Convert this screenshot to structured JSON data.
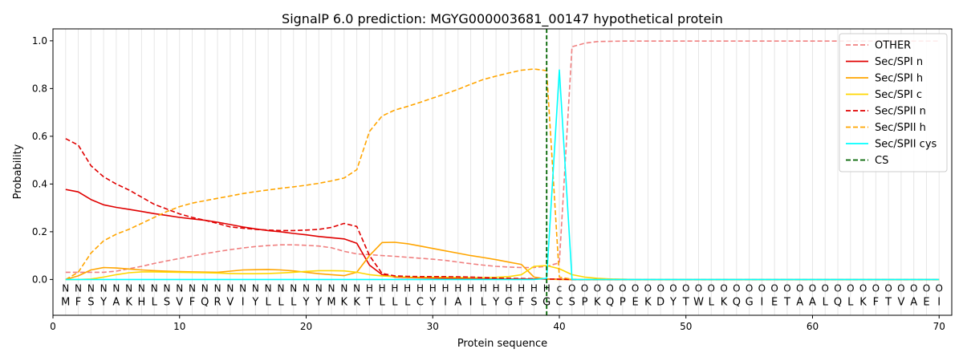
{
  "chart_data": {
    "type": "line",
    "title": "SignalP 6.0 prediction: MGYG000003681_00147 hypothetical protein",
    "xlabel": "Protein sequence",
    "ylabel": "Probability",
    "xlim": [
      0,
      71
    ],
    "ylim": [
      -0.15,
      1.05
    ],
    "xticks": [
      0,
      10,
      20,
      30,
      40,
      50,
      60,
      70
    ],
    "yticks": [
      0.0,
      0.2,
      0.4,
      0.6,
      0.8,
      1.0
    ],
    "grid": "vertical lines at each residue position",
    "legend_position": "top-right",
    "sequence": [
      "M",
      "F",
      "S",
      "Y",
      "A",
      "K",
      "H",
      "L",
      "S",
      "V",
      "F",
      "Q",
      "R",
      "V",
      "I",
      "Y",
      "L",
      "L",
      "L",
      "Y",
      "Y",
      "M",
      "K",
      "K",
      "T",
      "L",
      "L",
      "L",
      "C",
      "Y",
      "I",
      "A",
      "I",
      "L",
      "Y",
      "G",
      "F",
      "S",
      "G",
      "C",
      "S",
      "P",
      "K",
      "Q",
      "P",
      "E",
      "K",
      "D",
      "Y",
      "T",
      "W",
      "L",
      "K",
      "Q",
      "G",
      "I",
      "E",
      "T",
      "A",
      "A",
      "L",
      "Q",
      "L",
      "K",
      "F",
      "T",
      "V",
      "A",
      "E",
      "I"
    ],
    "labels": [
      "N",
      "N",
      "N",
      "N",
      "N",
      "N",
      "N",
      "N",
      "N",
      "N",
      "N",
      "N",
      "N",
      "N",
      "N",
      "N",
      "N",
      "N",
      "N",
      "N",
      "N",
      "N",
      "N",
      "N",
      "H",
      "H",
      "H",
      "H",
      "H",
      "H",
      "H",
      "H",
      "H",
      "H",
      "H",
      "H",
      "H",
      "H",
      "H",
      "C",
      "O",
      "O",
      "O",
      "O",
      "O",
      "O",
      "O",
      "O",
      "O",
      "O",
      "O",
      "O",
      "O",
      "O",
      "O",
      "O",
      "O",
      "O",
      "O",
      "O",
      "O",
      "O",
      "O",
      "O",
      "O",
      "O",
      "O",
      "O",
      "O",
      "O"
    ],
    "label_display": [
      "N",
      "N",
      "N",
      "N",
      "N",
      "N",
      "N",
      "N",
      "N",
      "N",
      "N",
      "N",
      "N",
      "N",
      "N",
      "N",
      "N",
      "N",
      "N",
      "N",
      "N",
      "N",
      "N",
      "N",
      "H",
      "H",
      "H",
      "H",
      "H",
      "H",
      "H",
      "H",
      "H",
      "H",
      "H",
      "H",
      "H",
      "H",
      "H",
      "c",
      "O",
      "O",
      "O",
      "O",
      "O",
      "O",
      "O",
      "O",
      "O",
      "O",
      "O",
      "O",
      "O",
      "O",
      "O",
      "O",
      "O",
      "O",
      "O",
      "O",
      "O",
      "O",
      "O",
      "O",
      "O",
      "O",
      "O",
      "O",
      "O",
      "O"
    ],
    "label_colors": {
      "N": "#ff0000",
      "H": "#ffa500",
      "C": "#00ffff",
      "O": "#808080"
    },
    "cs_position": 39,
    "cs_color": "#006400",
    "x": [
      1,
      2,
      3,
      4,
      5,
      6,
      7,
      8,
      9,
      10,
      11,
      12,
      13,
      14,
      15,
      16,
      17,
      18,
      19,
      20,
      21,
      22,
      23,
      24,
      25,
      26,
      27,
      28,
      29,
      30,
      31,
      32,
      33,
      34,
      35,
      36,
      37,
      38,
      39,
      40,
      41,
      42,
      43,
      44,
      45,
      46,
      47,
      48,
      49,
      50,
      51,
      52,
      53,
      54,
      55,
      56,
      57,
      58,
      59,
      60,
      61,
      62,
      63,
      64,
      65,
      66,
      67,
      68,
      69,
      70
    ],
    "series": [
      {
        "name": "OTHER",
        "color": "#f08080",
        "dash": "dashed",
        "values": [
          0.03,
          0.03,
          0.03,
          0.03,
          0.035,
          0.045,
          0.055,
          0.067,
          0.078,
          0.088,
          0.098,
          0.108,
          0.117,
          0.125,
          0.132,
          0.138,
          0.142,
          0.145,
          0.145,
          0.143,
          0.14,
          0.133,
          0.118,
          0.107,
          0.104,
          0.1,
          0.097,
          0.093,
          0.089,
          0.085,
          0.08,
          0.073,
          0.066,
          0.06,
          0.055,
          0.052,
          0.05,
          0.05,
          0.055,
          0.07,
          0.975,
          0.99,
          0.997,
          0.998,
          0.999,
          0.999,
          0.999,
          0.999,
          0.999,
          0.999,
          0.999,
          0.999,
          0.999,
          0.999,
          0.999,
          0.999,
          0.999,
          0.999,
          0.999,
          0.999,
          0.999,
          0.999,
          0.999,
          0.999,
          0.999,
          0.999,
          0.999,
          0.999,
          0.999,
          0.999
        ]
      },
      {
        "name": "Sec/SPI n",
        "color": "#e00000",
        "dash": "solid",
        "values": [
          0.377,
          0.367,
          0.335,
          0.313,
          0.302,
          0.294,
          0.285,
          0.276,
          0.268,
          0.26,
          0.254,
          0.248,
          0.24,
          0.23,
          0.22,
          0.212,
          0.205,
          0.2,
          0.193,
          0.187,
          0.18,
          0.175,
          0.17,
          0.152,
          0.06,
          0.02,
          0.01,
          0.008,
          0.007,
          0.006,
          0.005,
          0.004,
          0.003,
          0.002,
          0.002,
          0.002,
          0.002,
          0.002,
          0.002,
          0.001,
          0,
          0,
          0,
          0,
          0,
          0,
          0,
          0,
          0,
          0,
          0,
          0,
          0,
          0,
          0,
          0,
          0,
          0,
          0,
          0,
          0,
          0,
          0,
          0,
          0,
          0,
          0,
          0,
          0,
          0
        ]
      },
      {
        "name": "Sec/SPI h",
        "color": "#ffa500",
        "dash": "solid",
        "values": [
          0.0,
          0.015,
          0.04,
          0.05,
          0.048,
          0.044,
          0.04,
          0.037,
          0.035,
          0.033,
          0.032,
          0.031,
          0.03,
          0.035,
          0.04,
          0.041,
          0.042,
          0.04,
          0.036,
          0.03,
          0.024,
          0.02,
          0.016,
          0.03,
          0.1,
          0.155,
          0.156,
          0.15,
          0.14,
          0.13,
          0.12,
          0.11,
          0.1,
          0.092,
          0.083,
          0.073,
          0.063,
          0.01,
          0.002,
          0.0,
          0,
          0,
          0,
          0,
          0,
          0,
          0,
          0,
          0,
          0,
          0,
          0,
          0,
          0,
          0,
          0,
          0,
          0,
          0,
          0,
          0,
          0,
          0,
          0,
          0,
          0,
          0,
          0,
          0,
          0
        ]
      },
      {
        "name": "Sec/SPI c",
        "color": "#ffd700",
        "dash": "solid",
        "values": [
          0.0,
          0.0,
          0.002,
          0.01,
          0.02,
          0.028,
          0.032,
          0.032,
          0.031,
          0.03,
          0.029,
          0.028,
          0.027,
          0.025,
          0.024,
          0.024,
          0.025,
          0.027,
          0.03,
          0.034,
          0.037,
          0.037,
          0.036,
          0.03,
          0.02,
          0.015,
          0.012,
          0.01,
          0.009,
          0.009,
          0.009,
          0.008,
          0.008,
          0.008,
          0.009,
          0.012,
          0.02,
          0.055,
          0.058,
          0.045,
          0.02,
          0.01,
          0.005,
          0.002,
          0.001,
          0,
          0,
          0,
          0,
          0,
          0,
          0,
          0,
          0,
          0,
          0,
          0,
          0,
          0,
          0,
          0,
          0,
          0,
          0,
          0,
          0,
          0,
          0,
          0,
          0
        ]
      },
      {
        "name": "Sec/SPII n",
        "color": "#e00000",
        "dash": "dashed",
        "values": [
          0.59,
          0.563,
          0.477,
          0.43,
          0.4,
          0.375,
          0.345,
          0.315,
          0.295,
          0.275,
          0.26,
          0.248,
          0.235,
          0.22,
          0.215,
          0.21,
          0.207,
          0.205,
          0.205,
          0.207,
          0.21,
          0.218,
          0.235,
          0.222,
          0.1,
          0.025,
          0.015,
          0.013,
          0.012,
          0.012,
          0.012,
          0.011,
          0.01,
          0.008,
          0.006,
          0.005,
          0.004,
          0.003,
          0.002,
          0.001,
          0,
          0,
          0,
          0,
          0,
          0,
          0,
          0,
          0,
          0,
          0,
          0,
          0,
          0,
          0,
          0,
          0,
          0,
          0,
          0,
          0,
          0,
          0,
          0,
          0,
          0,
          0,
          0,
          0,
          0
        ]
      },
      {
        "name": "Sec/SPII h",
        "color": "#ffa500",
        "dash": "dashed",
        "values": [
          0.0,
          0.03,
          0.11,
          0.162,
          0.19,
          0.21,
          0.235,
          0.26,
          0.285,
          0.305,
          0.32,
          0.33,
          0.34,
          0.35,
          0.36,
          0.368,
          0.375,
          0.382,
          0.388,
          0.395,
          0.403,
          0.413,
          0.425,
          0.46,
          0.62,
          0.685,
          0.71,
          0.725,
          0.742,
          0.76,
          0.778,
          0.797,
          0.818,
          0.838,
          0.852,
          0.865,
          0.877,
          0.882,
          0.875,
          0.01,
          0.001,
          0,
          0,
          0,
          0,
          0,
          0,
          0,
          0,
          0,
          0,
          0,
          0,
          0,
          0,
          0,
          0,
          0,
          0,
          0,
          0,
          0,
          0,
          0,
          0,
          0,
          0,
          0,
          0,
          0
        ]
      },
      {
        "name": "Sec/SPII cys",
        "color": "#00ffff",
        "dash": "solid",
        "values": [
          0.0,
          0.0,
          0.0,
          0.0,
          0.0,
          0.0,
          0.0,
          0.0,
          0.0,
          0.0,
          0.0,
          0.0,
          0.0,
          0.0,
          0.0,
          0.0,
          0.0,
          0.0,
          0.0,
          0.0,
          0.0,
          0.0,
          0.0,
          0.0,
          0.0,
          0.0,
          0.0,
          0.0,
          0.0,
          0.0,
          0.0,
          0.0,
          0.0,
          0.0,
          0.0,
          0.0,
          0.0,
          0.0,
          0.005,
          0.878,
          0.0,
          0,
          0,
          0,
          0,
          0,
          0,
          0,
          0,
          0,
          0,
          0,
          0,
          0,
          0,
          0,
          0,
          0,
          0,
          0,
          0,
          0,
          0,
          0,
          0,
          0,
          0,
          0,
          0,
          0
        ]
      }
    ],
    "legend": [
      {
        "name": "OTHER",
        "color": "#f08080",
        "dash": "dashed"
      },
      {
        "name": "Sec/SPI n",
        "color": "#e00000",
        "dash": "solid"
      },
      {
        "name": "Sec/SPI h",
        "color": "#ffa500",
        "dash": "solid"
      },
      {
        "name": "Sec/SPI c",
        "color": "#ffd700",
        "dash": "solid"
      },
      {
        "name": "Sec/SPII n",
        "color": "#e00000",
        "dash": "dashed"
      },
      {
        "name": "Sec/SPII h",
        "color": "#ffa500",
        "dash": "dashed"
      },
      {
        "name": "Sec/SPII cys",
        "color": "#00ffff",
        "dash": "solid"
      },
      {
        "name": "CS",
        "color": "#006400",
        "dash": "dashed"
      }
    ]
  }
}
